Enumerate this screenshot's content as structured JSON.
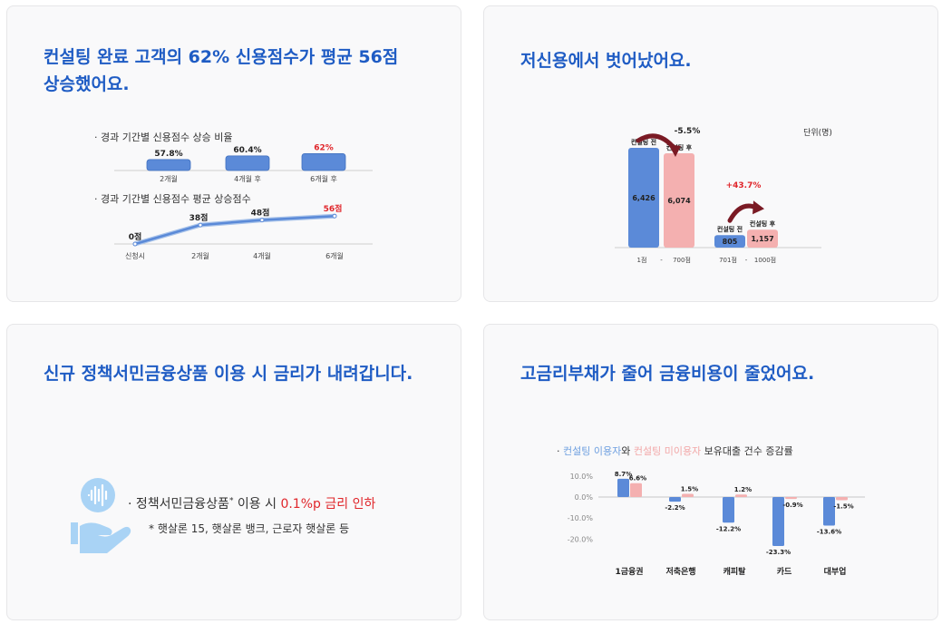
{
  "cards": {
    "credit_up": {
      "title_line1": "컨설팅 완료 고객의 62% 신용점수가 평균 56점",
      "title_line2": "상승했어요."
    },
    "low_credit": {
      "title": "저신용에서 벗어났어요."
    },
    "policy": {
      "title": "신규 정책서민금융상품 이용 시 금리가 내려갑니다.",
      "line_bullet": "· 정책서민금융상품",
      "line_mark": "*",
      "line_mid": " 이용 시 ",
      "line_red": "0.1%p 금리 인하",
      "note": "* 햇살론 15, 햇살론 뱅크, 근로자 햇살론 등",
      "icon": "hand-holding-coin-icon"
    },
    "debt": {
      "title": "고금리부채가 줄어 금융비용이 줄었어요."
    }
  },
  "colors": {
    "blue": "#5b8ad8",
    "pink": "#f4b0b0",
    "red": "#e0262b",
    "title_blue": "#1f5cc4",
    "arrow": "#7a1a24",
    "legend_blue": "#6fa0e0",
    "legend_pink": "#f2a8a8"
  },
  "chart_data": [
    {
      "id": "ratio",
      "type": "bar",
      "title": "· 경과 기간별 신용점수 상승 비율",
      "categories": [
        "2개월",
        "4개월 후",
        "6개월 후"
      ],
      "values": [
        57.8,
        60.4,
        62
      ],
      "labels": [
        "57.8%",
        "60.4%",
        "62%"
      ],
      "highlight_index": 2
    },
    {
      "id": "avg_increase",
      "type": "line",
      "title": "· 경과 기간별 신용점수 평균 상승점수",
      "categories": [
        "신청시",
        "2개월",
        "4개월",
        "6개월"
      ],
      "values": [
        0,
        38,
        48,
        56
      ],
      "labels": [
        "0점",
        "38점",
        "48점",
        "56점"
      ],
      "highlight_index": 3
    },
    {
      "id": "low_credit",
      "type": "bar",
      "unit": "단위(명)",
      "groups": [
        {
          "range": [
            "1점",
            "700점"
          ],
          "before": {
            "label": "컨설팅 전",
            "value": 6426,
            "text": "6,426"
          },
          "after": {
            "label": "컨설팅 후",
            "value": 6074,
            "text": "6,074"
          },
          "change": "-5.5%"
        },
        {
          "range": [
            "701점",
            "1000점"
          ],
          "before": {
            "label": "컨설팅 전",
            "value": 805,
            "text": "805"
          },
          "after": {
            "label": "컨설팅 후",
            "value": 1157,
            "text": "1,157"
          },
          "change": "+43.7%"
        }
      ],
      "range_sep": "-"
    },
    {
      "id": "debt",
      "type": "bar",
      "legend": {
        "bullet": "· ",
        "series1": "컨설팅 이용자",
        "conn1": "와 ",
        "series2": "컨설팅 미이용자",
        "rest": " 보유대출 건수 증감률"
      },
      "yticks": [
        "10.0%",
        "0.0%",
        "-10.0%",
        "-20.0%"
      ],
      "ylim": [
        -20,
        10
      ],
      "categories": [
        "1금융권",
        "저축은행",
        "캐피탈",
        "카드",
        "대부업"
      ],
      "series": [
        {
          "name": "컨설팅 이용자",
          "values": [
            8.7,
            -2.2,
            -12.2,
            -23.3,
            -13.6
          ],
          "labels": [
            "8.7%",
            "-2.2%",
            "-12.2%",
            "-23.3%",
            "-13.6%"
          ]
        },
        {
          "name": "컨설팅 미이용자",
          "values": [
            6.6,
            1.5,
            1.2,
            -0.9,
            -1.5
          ],
          "labels": [
            "6.6%",
            "1.5%",
            "1.2%",
            "-0.9%",
            "-1.5%"
          ]
        }
      ]
    }
  ]
}
